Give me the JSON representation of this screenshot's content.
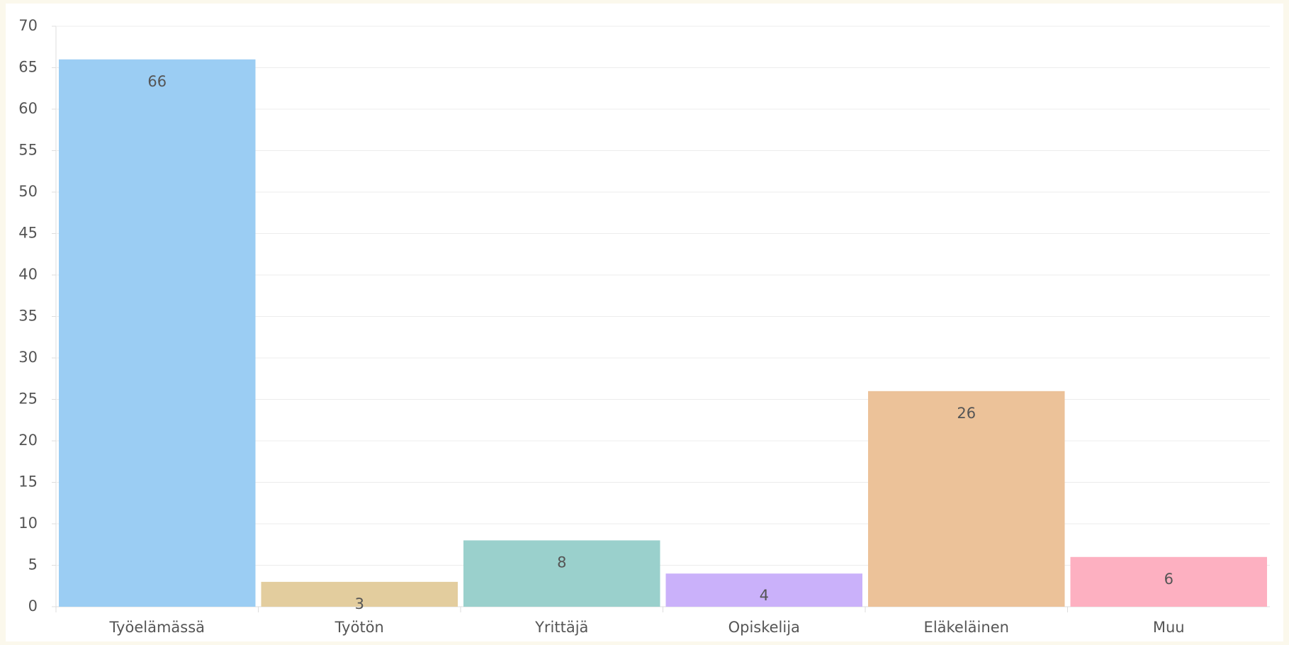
{
  "chart_data": {
    "type": "bar",
    "categories": [
      "Työelämässä",
      "Työtön",
      "Yrittäjä",
      "Opiskelija",
      "Eläkeläinen",
      "Muu"
    ],
    "values": [
      66,
      3,
      8,
      4,
      26,
      6
    ],
    "colors": [
      "#9bcdf3",
      "#e3cd9e",
      "#9ad0cc",
      "#cab1fa",
      "#ecc299",
      "#fdb0c1"
    ],
    "ylim": [
      0,
      70
    ],
    "yticks": [
      0,
      5,
      10,
      15,
      20,
      25,
      30,
      35,
      40,
      45,
      50,
      55,
      60,
      65,
      70
    ],
    "grid": true
  }
}
